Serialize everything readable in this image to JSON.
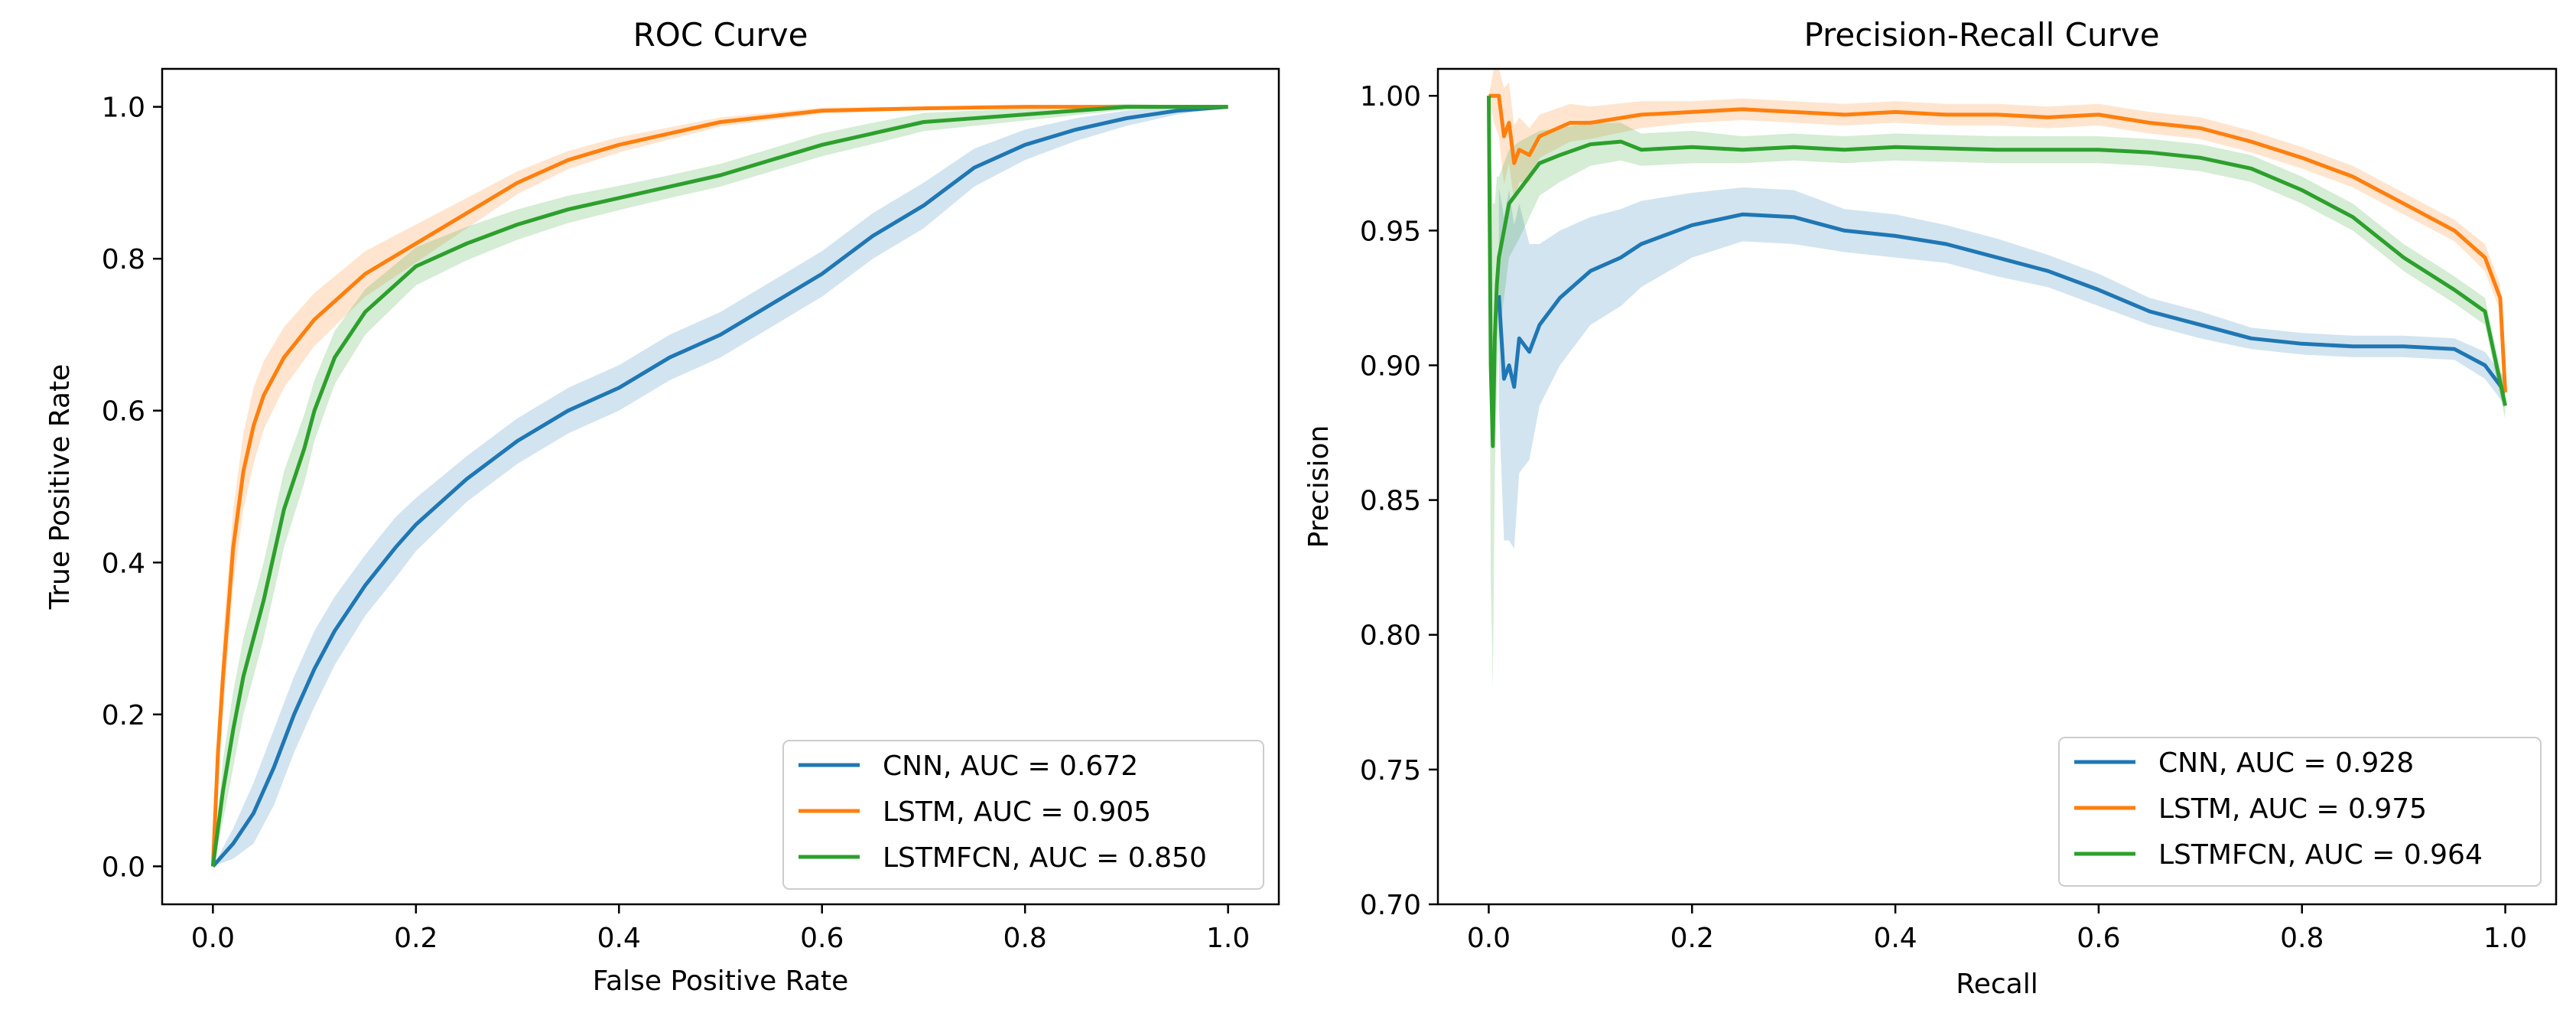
{
  "colors": {
    "cnn": "#1f77b4",
    "lstm": "#ff7f0e",
    "lstmfcn": "#2ca02c"
  },
  "chart_data": [
    {
      "type": "line",
      "title": "ROC Curve",
      "xlabel": "False Positive Rate",
      "ylabel": "True Positive Rate",
      "xlim": [
        -0.05,
        1.05
      ],
      "ylim": [
        -0.05,
        1.05
      ],
      "xticks": [
        0.0,
        0.2,
        0.4,
        0.6,
        0.8,
        1.0
      ],
      "yticks": [
        0.0,
        0.2,
        0.4,
        0.6,
        0.8,
        1.0
      ],
      "tick_labels_x": [
        "0.0",
        "0.2",
        "0.4",
        "0.6",
        "0.8",
        "1.0"
      ],
      "tick_labels_y": [
        "0.0",
        "0.2",
        "0.4",
        "0.6",
        "0.8",
        "1.0"
      ],
      "legend_position": "lower-right",
      "series": [
        {
          "name": "CNN, AUC = 0.672",
          "color_key": "cnn",
          "x": [
            0.0,
            0.02,
            0.04,
            0.06,
            0.08,
            0.1,
            0.12,
            0.15,
            0.18,
            0.2,
            0.25,
            0.3,
            0.35,
            0.4,
            0.45,
            0.5,
            0.55,
            0.6,
            0.65,
            0.7,
            0.75,
            0.8,
            0.85,
            0.9,
            0.95,
            1.0
          ],
          "y": [
            0.0,
            0.03,
            0.07,
            0.13,
            0.2,
            0.26,
            0.31,
            0.37,
            0.42,
            0.45,
            0.51,
            0.56,
            0.6,
            0.63,
            0.67,
            0.7,
            0.74,
            0.78,
            0.83,
            0.87,
            0.92,
            0.95,
            0.97,
            0.985,
            0.995,
            1.0
          ],
          "band": [
            0.0,
            0.02,
            0.04,
            0.05,
            0.05,
            0.05,
            0.045,
            0.04,
            0.04,
            0.035,
            0.03,
            0.03,
            0.03,
            0.03,
            0.03,
            0.03,
            0.03,
            0.03,
            0.03,
            0.03,
            0.025,
            0.02,
            0.015,
            0.01,
            0.005,
            0.0
          ]
        },
        {
          "name": "LSTM, AUC = 0.905",
          "color_key": "lstm",
          "x": [
            0.0,
            0.005,
            0.01,
            0.02,
            0.03,
            0.04,
            0.05,
            0.07,
            0.1,
            0.15,
            0.2,
            0.25,
            0.3,
            0.35,
            0.4,
            0.45,
            0.5,
            0.6,
            0.7,
            0.8,
            0.9,
            1.0
          ],
          "y": [
            0.0,
            0.15,
            0.25,
            0.42,
            0.52,
            0.58,
            0.62,
            0.67,
            0.72,
            0.78,
            0.82,
            0.86,
            0.9,
            0.93,
            0.95,
            0.965,
            0.98,
            0.995,
            0.998,
            1.0,
            1.0,
            1.0
          ],
          "band": [
            0.0,
            0.04,
            0.05,
            0.05,
            0.05,
            0.05,
            0.045,
            0.04,
            0.035,
            0.03,
            0.025,
            0.02,
            0.015,
            0.012,
            0.01,
            0.008,
            0.006,
            0.004,
            0.002,
            0.0,
            0.0,
            0.0
          ]
        },
        {
          "name": "LSTMFCN, AUC = 0.850",
          "color_key": "lstmfcn",
          "x": [
            0.0,
            0.01,
            0.02,
            0.03,
            0.05,
            0.07,
            0.09,
            0.1,
            0.12,
            0.15,
            0.2,
            0.25,
            0.3,
            0.35,
            0.4,
            0.45,
            0.5,
            0.55,
            0.6,
            0.65,
            0.7,
            0.8,
            0.9,
            1.0
          ],
          "y": [
            0.0,
            0.1,
            0.18,
            0.25,
            0.35,
            0.47,
            0.55,
            0.6,
            0.67,
            0.73,
            0.79,
            0.82,
            0.845,
            0.865,
            0.88,
            0.895,
            0.91,
            0.93,
            0.95,
            0.965,
            0.98,
            0.99,
            1.0,
            1.0
          ],
          "band": [
            0.0,
            0.04,
            0.05,
            0.05,
            0.05,
            0.05,
            0.045,
            0.04,
            0.035,
            0.03,
            0.025,
            0.022,
            0.02,
            0.018,
            0.016,
            0.015,
            0.015,
            0.015,
            0.015,
            0.014,
            0.012,
            0.008,
            0.004,
            0.0
          ]
        }
      ]
    },
    {
      "type": "line",
      "title": "Precision-Recall Curve",
      "xlabel": "Recall",
      "ylabel": "Precision",
      "xlim": [
        -0.05,
        1.05
      ],
      "ylim": [
        0.7,
        1.01
      ],
      "xticks": [
        0.0,
        0.2,
        0.4,
        0.6,
        0.8,
        1.0
      ],
      "yticks": [
        0.7,
        0.75,
        0.8,
        0.85,
        0.9,
        0.95,
        1.0
      ],
      "tick_labels_x": [
        "0.0",
        "0.2",
        "0.4",
        "0.6",
        "0.8",
        "1.0"
      ],
      "tick_labels_y": [
        "0.70",
        "0.75",
        "0.80",
        "0.85",
        "0.90",
        "0.95",
        "1.00"
      ],
      "legend_position": "lower-right",
      "series": [
        {
          "name": "CNN, AUC = 0.928",
          "color_key": "cnn",
          "x": [
            0.01,
            0.015,
            0.02,
            0.025,
            0.03,
            0.04,
            0.05,
            0.07,
            0.1,
            0.13,
            0.15,
            0.2,
            0.25,
            0.3,
            0.35,
            0.4,
            0.45,
            0.5,
            0.55,
            0.6,
            0.65,
            0.7,
            0.75,
            0.8,
            0.85,
            0.9,
            0.95,
            0.98,
            1.0
          ],
          "y": [
            0.926,
            0.895,
            0.9,
            0.892,
            0.91,
            0.905,
            0.915,
            0.925,
            0.935,
            0.94,
            0.945,
            0.952,
            0.956,
            0.955,
            0.95,
            0.948,
            0.945,
            0.94,
            0.935,
            0.928,
            0.92,
            0.915,
            0.91,
            0.908,
            0.907,
            0.907,
            0.906,
            0.9,
            0.89
          ],
          "band": [
            0.04,
            0.06,
            0.065,
            0.06,
            0.05,
            0.04,
            0.03,
            0.025,
            0.02,
            0.018,
            0.016,
            0.012,
            0.01,
            0.01,
            0.008,
            0.008,
            0.007,
            0.007,
            0.006,
            0.006,
            0.005,
            0.005,
            0.004,
            0.004,
            0.004,
            0.004,
            0.004,
            0.005,
            0.005
          ]
        },
        {
          "name": "LSTM, AUC = 0.975",
          "color_key": "lstm",
          "x": [
            0.0,
            0.005,
            0.01,
            0.015,
            0.02,
            0.025,
            0.03,
            0.04,
            0.05,
            0.08,
            0.1,
            0.15,
            0.2,
            0.25,
            0.3,
            0.35,
            0.4,
            0.45,
            0.5,
            0.55,
            0.6,
            0.65,
            0.7,
            0.75,
            0.8,
            0.85,
            0.9,
            0.95,
            0.98,
            0.995,
            1.0
          ],
          "y": [
            1.0,
            1.0,
            1.0,
            0.985,
            0.99,
            0.975,
            0.98,
            0.978,
            0.985,
            0.99,
            0.99,
            0.993,
            0.994,
            0.995,
            0.994,
            0.993,
            0.994,
            0.993,
            0.993,
            0.992,
            0.993,
            0.99,
            0.988,
            0.983,
            0.977,
            0.97,
            0.96,
            0.95,
            0.94,
            0.925,
            0.89
          ],
          "band": [
            0.0,
            0.01,
            0.015,
            0.018,
            0.015,
            0.014,
            0.012,
            0.01,
            0.008,
            0.007,
            0.006,
            0.005,
            0.004,
            0.004,
            0.004,
            0.004,
            0.004,
            0.004,
            0.004,
            0.004,
            0.004,
            0.004,
            0.004,
            0.004,
            0.004,
            0.004,
            0.004,
            0.004,
            0.005,
            0.005,
            0.005
          ]
        },
        {
          "name": "LSTMFCN, AUC = 0.964",
          "color_key": "lstmfcn",
          "x": [
            0.0,
            0.002,
            0.004,
            0.006,
            0.008,
            0.01,
            0.015,
            0.02,
            0.03,
            0.04,
            0.05,
            0.07,
            0.1,
            0.13,
            0.15,
            0.2,
            0.25,
            0.3,
            0.35,
            0.4,
            0.5,
            0.6,
            0.65,
            0.7,
            0.75,
            0.8,
            0.85,
            0.9,
            0.95,
            0.98,
            1.0
          ],
          "y": [
            1.0,
            0.9,
            0.87,
            0.91,
            0.93,
            0.94,
            0.95,
            0.96,
            0.965,
            0.97,
            0.975,
            0.978,
            0.982,
            0.983,
            0.98,
            0.981,
            0.98,
            0.981,
            0.98,
            0.981,
            0.98,
            0.98,
            0.979,
            0.977,
            0.973,
            0.965,
            0.955,
            0.94,
            0.928,
            0.92,
            0.885
          ],
          "band": [
            0.0,
            0.08,
            0.09,
            0.05,
            0.04,
            0.03,
            0.025,
            0.02,
            0.018,
            0.015,
            0.012,
            0.01,
            0.008,
            0.007,
            0.006,
            0.006,
            0.005,
            0.005,
            0.005,
            0.005,
            0.005,
            0.005,
            0.005,
            0.005,
            0.005,
            0.005,
            0.005,
            0.005,
            0.005,
            0.005,
            0.005
          ]
        }
      ]
    }
  ]
}
